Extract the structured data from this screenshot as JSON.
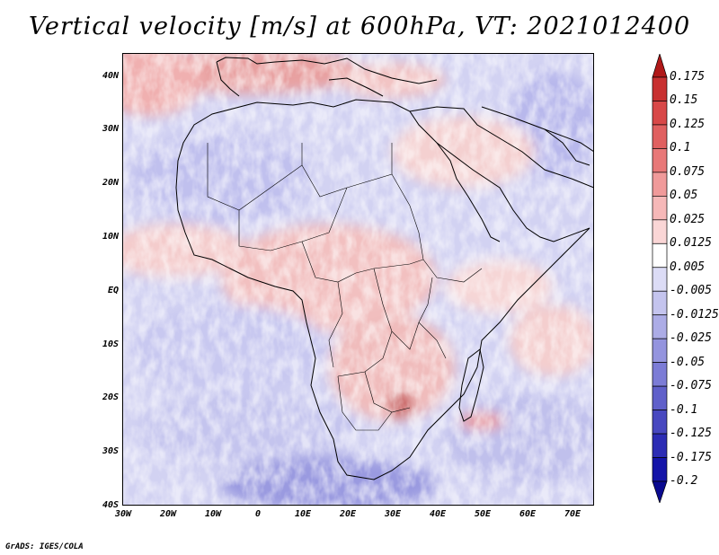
{
  "title": "Vertical velocity [m/s] at 600hPa, VT: 2021012400",
  "map": {
    "region": "Africa",
    "variable": "Vertical velocity",
    "units": "m/s",
    "level": "600hPa",
    "valid_time": "2021012400",
    "lon_range": [
      -30,
      75
    ],
    "lat_range": [
      -40,
      44
    ],
    "lat_labels": [
      "40N",
      "30N",
      "20N",
      "10N",
      "EQ",
      "10S",
      "20S",
      "30S",
      "40S"
    ],
    "lon_labels": [
      "30W",
      "20W",
      "10W",
      "0",
      "10E",
      "20E",
      "30E",
      "40E",
      "50E",
      "60E",
      "70E"
    ]
  },
  "colorbar": {
    "labels": [
      "0.175",
      "0.15",
      "0.125",
      "0.1",
      "0.075",
      "0.05",
      "0.025",
      "0.0125",
      "0.005",
      "-0.005",
      "-0.0125",
      "-0.025",
      "-0.05",
      "-0.075",
      "-0.1",
      "-0.125",
      "-0.175",
      "-0.2"
    ],
    "colors": [
      "#b01818",
      "#c83030",
      "#d84848",
      "#e06060",
      "#e87878",
      "#f09a9a",
      "#f6b8b8",
      "#fad6d6",
      "#ffffff",
      "#dcdcf6",
      "#c4c4ee",
      "#acace6",
      "#9494de",
      "#7c7cd6",
      "#6060ca",
      "#4848c0",
      "#2c2cb4",
      "#1414a8",
      "#0a0a90"
    ]
  },
  "credit": "GrADS: IGES/COLA"
}
